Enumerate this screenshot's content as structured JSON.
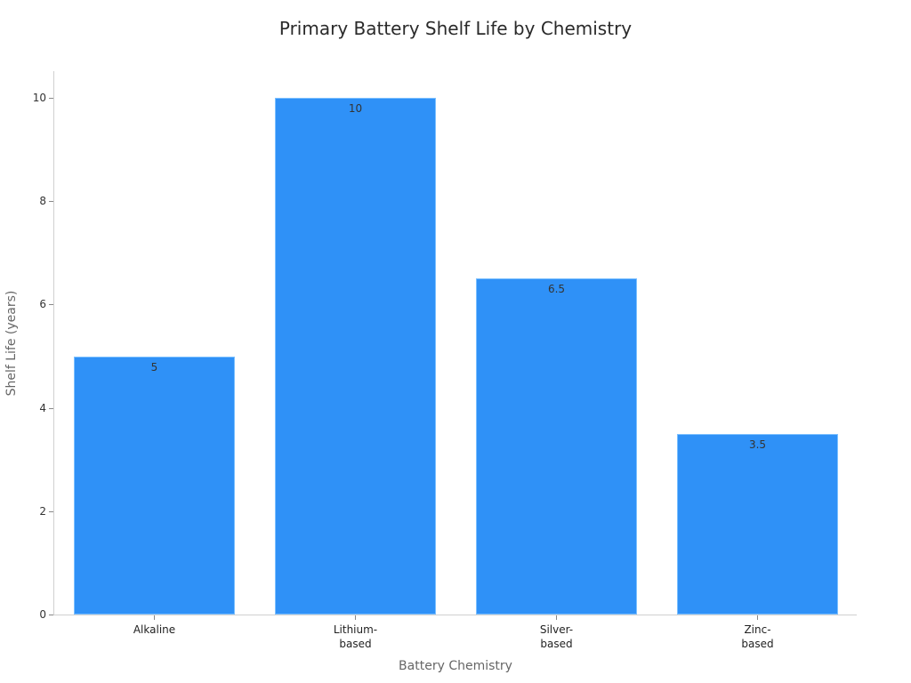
{
  "chart_data": {
    "type": "bar",
    "title": "Primary Battery Shelf Life by Chemistry",
    "xlabel": "Battery Chemistry",
    "ylabel": "Shelf Life (years)",
    "categories": [
      "Alkaline",
      "Lithium-based",
      "Silver-based",
      "Zinc-based"
    ],
    "category_lines": [
      [
        "Alkaline"
      ],
      [
        "Lithium-",
        "based"
      ],
      [
        "Silver-",
        "based"
      ],
      [
        "Zinc-",
        "based"
      ]
    ],
    "values": [
      5,
      10,
      6.5,
      3.5
    ],
    "value_labels": [
      "5",
      "10",
      "6.5",
      "3.5"
    ],
    "ylim": [
      0,
      10.5
    ],
    "yticks": [
      0,
      2,
      4,
      6,
      8,
      10
    ],
    "grid": false,
    "legend": null,
    "bar_color": "#2f91f7"
  }
}
